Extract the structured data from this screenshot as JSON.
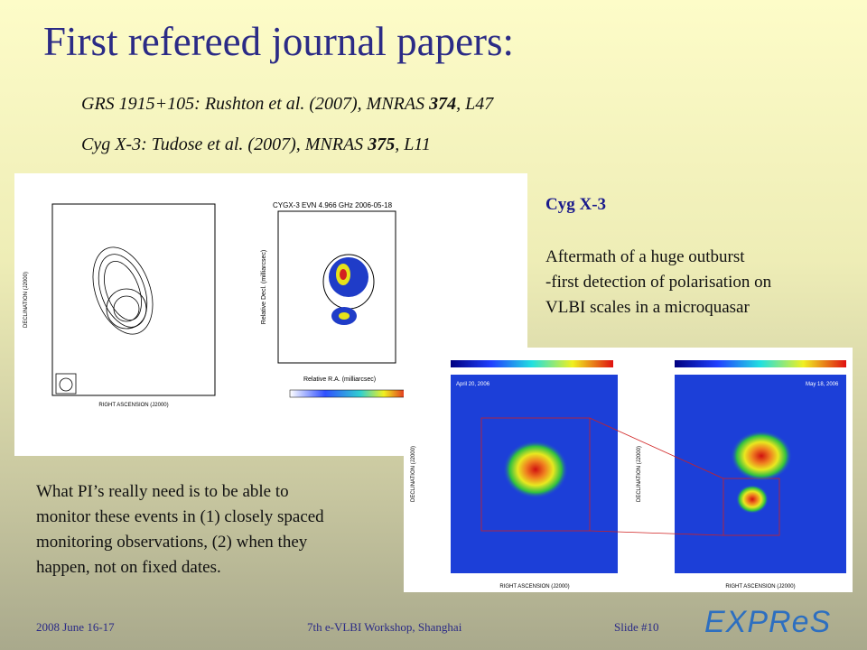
{
  "slide": {
    "title": "First refereed journal papers:",
    "references": [
      [
        "GRS 1915+105: Rushton et al. (2007), MNRAS ",
        "374",
        ", L47"
      ],
      [
        "Cyg X-3: Tudose et al. (2007), MNRAS ",
        "375",
        ", L11"
      ]
    ],
    "side_heading": "Cyg X-3",
    "side_lines": [
      "Aftermath of a huge outburst",
      "-first detection of polarisation on",
      "VLBI scales in a microquasar"
    ],
    "note_lines": [
      "What PI’s really need is to be able to",
      "monitor these events in (1) closely spaced",
      "monitoring observations, (2) when they",
      "happen, not on fixed dates."
    ],
    "figure_left": {
      "plot_title": "CYGX-3  EVN  4.966 GHz  2006-05-18",
      "x_label_a": "RIGHT ASCENSION (J2000)",
      "y_label_a": "DECLINATION (J2000)",
      "x_label_b": "Relative R.A. (milliarcsec)",
      "y_label_b": "Relative Decl. (milliarcsec)"
    },
    "figure_right": {
      "date_a": "April 20, 2006",
      "date_b": "May 18, 2006",
      "x_label": "RIGHT ASCENSION (J2000)",
      "y_label": "DECLINATION (J2000)"
    },
    "footer": {
      "date": "2008 June 16-17",
      "event": "7th e-VLBI Workshop, Shanghai",
      "slide_number": "Slide #10"
    },
    "logo": "EXPReS"
  }
}
